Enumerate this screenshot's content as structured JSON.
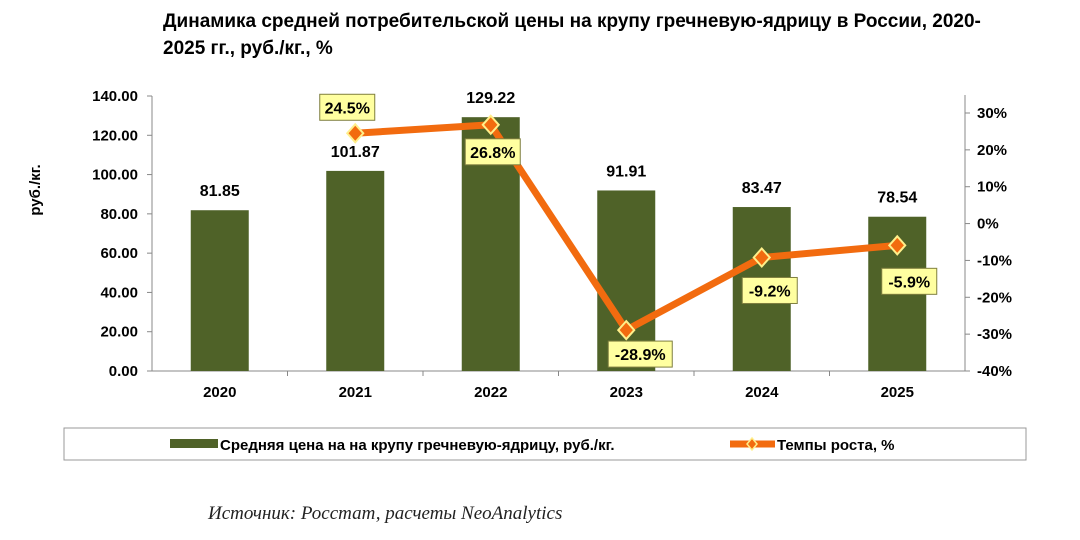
{
  "chart_data": {
    "type": "bar+line",
    "title": "Динамика средней потребительской цены на крупу гречневую-ядрицу в России, 2020-2025 гг., руб./кг., %",
    "ylabel": "руб./кг.",
    "categories": [
      "2020",
      "2021",
      "2022",
      "2023",
      "2024",
      "2025"
    ],
    "series": [
      {
        "name": "Средняя цена на на крупу гречневую-ядрицу, руб./кг.",
        "type": "bar",
        "axis": "left",
        "values": [
          81.85,
          101.87,
          129.22,
          91.91,
          83.47,
          78.54
        ],
        "labels": [
          "81.85",
          "101.87",
          "129.22",
          "91.91",
          "83.47",
          "78.54"
        ],
        "color": "#4f6228"
      },
      {
        "name": "Темпы роста, %",
        "type": "line",
        "axis": "right",
        "values": [
          null,
          24.5,
          26.8,
          -28.9,
          -9.2,
          -5.9
        ],
        "labels": [
          "",
          "24.5%",
          "26.8%",
          "-28.9%",
          "-9.2%",
          "-5.9%"
        ],
        "color": "#f26b0f"
      }
    ],
    "ylim": [
      0,
      140
    ],
    "yticks": [
      "0.00",
      "20.00",
      "40.00",
      "60.00",
      "80.00",
      "100.00",
      "120.00",
      "140.00"
    ],
    "y2lim": [
      -40,
      30
    ],
    "y2ticks": [
      "-40%",
      "-30%",
      "-20%",
      "-10%",
      "0%",
      "10%",
      "20%",
      "30%"
    ],
    "grid": false,
    "legend": "bottom"
  },
  "source": "Источник: Росстат, расчеты NeoAnalytics"
}
